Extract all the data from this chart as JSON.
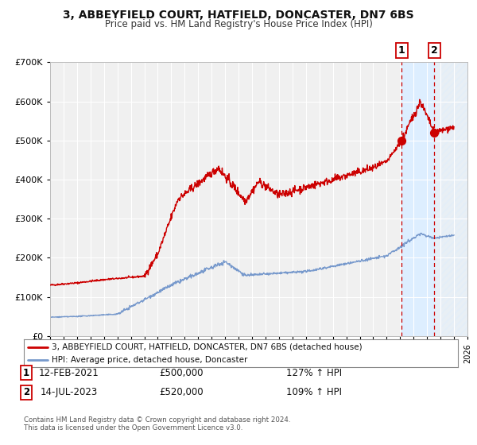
{
  "title": "3, ABBEYFIELD COURT, HATFIELD, DONCASTER, DN7 6BS",
  "subtitle": "Price paid vs. HM Land Registry's House Price Index (HPI)",
  "legend_red": "3, ABBEYFIELD COURT, HATFIELD, DONCASTER, DN7 6BS (detached house)",
  "legend_blue": "HPI: Average price, detached house, Doncaster",
  "point1_date": "12-FEB-2021",
  "point1_price": 500000,
  "point1_hpi": "127% ↑ HPI",
  "point2_date": "14-JUL-2023",
  "point2_price": 520000,
  "point2_hpi": "109% ↑ HPI",
  "footer1": "Contains HM Land Registry data © Crown copyright and database right 2024.",
  "footer2": "This data is licensed under the Open Government Licence v3.0.",
  "ylim": [
    0,
    700000
  ],
  "xlim_start": 1995.0,
  "xlim_end": 2026.0,
  "background_color": "#ffffff",
  "plot_bg_color": "#f0f0f0",
  "grid_color": "#ffffff",
  "red_color": "#cc0000",
  "blue_color": "#7799cc",
  "shade_color": "#ddeeff",
  "point1_x": 2021.12,
  "point2_x": 2023.54,
  "point1_y": 500000,
  "point2_y": 520000
}
